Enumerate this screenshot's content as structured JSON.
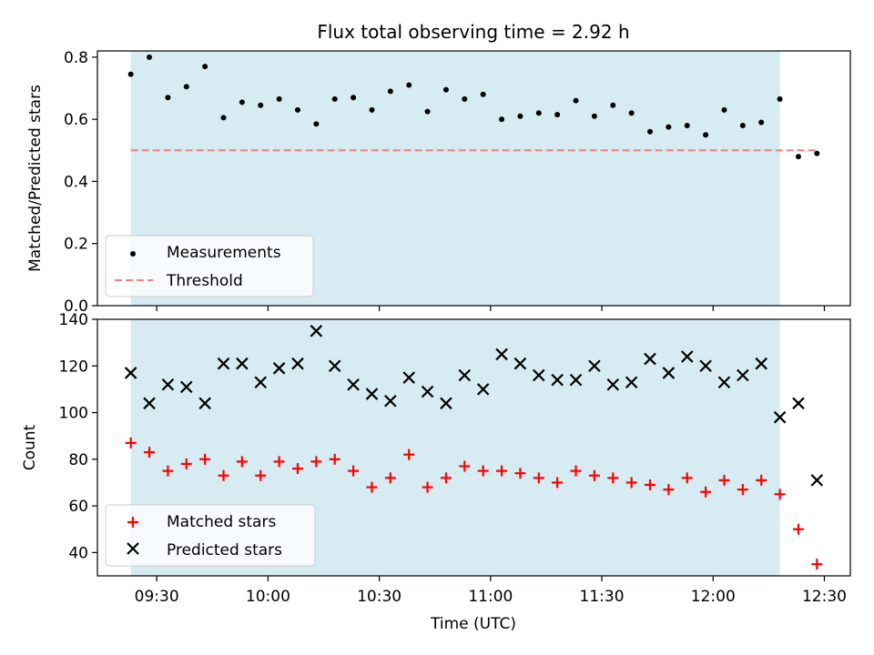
{
  "chart_data": [
    {
      "type": "scatter",
      "title": "Flux total observing time = 2.92 h",
      "xlabel": "",
      "ylabel": "Matched/Predicted stars",
      "ylim": [
        0,
        0.82
      ],
      "yticks": [
        "0.0",
        "0.2",
        "0.4",
        "0.6",
        "0.8"
      ],
      "ytick_values": [
        0,
        0.2,
        0.4,
        0.6,
        0.8
      ],
      "legend_position": "lower-left",
      "grid": false,
      "shaded_span": {
        "x_start": "09:23",
        "x_end": "12:18",
        "color": "#add8e6"
      },
      "threshold": {
        "name": "Threshold",
        "value": 0.5,
        "x_start": "09:23",
        "x_end": "12:28",
        "color": "#f08080"
      },
      "series": [
        {
          "name": "Measurements",
          "color": "#000000",
          "x": [
            "09:23",
            "09:28",
            "09:33",
            "09:38",
            "09:43",
            "09:48",
            "09:53",
            "09:58",
            "10:03",
            "10:08",
            "10:13",
            "10:18",
            "10:23",
            "10:28",
            "10:33",
            "10:38",
            "10:43",
            "10:48",
            "10:53",
            "10:58",
            "11:03",
            "11:08",
            "11:13",
            "11:18",
            "11:23",
            "11:28",
            "11:33",
            "11:38",
            "11:43",
            "11:48",
            "11:53",
            "11:58",
            "12:03",
            "12:08",
            "12:13",
            "12:18",
            "12:23",
            "12:28"
          ],
          "values": [
            0.745,
            0.8,
            0.67,
            0.705,
            0.77,
            0.605,
            0.655,
            0.645,
            0.665,
            0.63,
            0.585,
            0.665,
            0.67,
            0.63,
            0.69,
            0.71,
            0.625,
            0.695,
            0.665,
            0.68,
            0.6,
            0.61,
            0.62,
            0.615,
            0.66,
            0.61,
            0.645,
            0.62,
            0.56,
            0.575,
            0.58,
            0.55,
            0.63,
            0.58,
            0.59,
            0.665,
            0.48,
            0.49
          ]
        }
      ]
    },
    {
      "type": "scatter",
      "xlabel": "Time (UTC)",
      "ylabel": "Count",
      "ylim": [
        30,
        140
      ],
      "yticks": [
        "40",
        "60",
        "80",
        "100",
        "120",
        "140"
      ],
      "ytick_values": [
        40,
        60,
        80,
        100,
        120,
        140
      ],
      "xticks": [
        "09:30",
        "10:00",
        "10:30",
        "11:00",
        "11:30",
        "12:00",
        "12:30"
      ],
      "xtick_values": [
        "09:30",
        "10:00",
        "10:30",
        "11:00",
        "11:30",
        "12:00",
        "12:30"
      ],
      "xlim": [
        "09:14",
        "12:37"
      ],
      "legend_position": "lower-left",
      "grid": false,
      "shaded_span": {
        "x_start": "09:23",
        "x_end": "12:18",
        "color": "#add8e6"
      },
      "x": [
        "09:23",
        "09:28",
        "09:33",
        "09:38",
        "09:43",
        "09:48",
        "09:53",
        "09:58",
        "10:03",
        "10:08",
        "10:13",
        "10:18",
        "10:23",
        "10:28",
        "10:33",
        "10:38",
        "10:43",
        "10:48",
        "10:53",
        "10:58",
        "11:03",
        "11:08",
        "11:13",
        "11:18",
        "11:23",
        "11:28",
        "11:33",
        "11:38",
        "11:43",
        "11:48",
        "11:53",
        "11:58",
        "12:03",
        "12:08",
        "12:13",
        "12:18",
        "12:23",
        "12:28"
      ],
      "series": [
        {
          "name": "Matched stars",
          "marker": "+",
          "color": "#ff0000",
          "values": [
            87,
            83,
            75,
            78,
            80,
            73,
            79,
            73,
            79,
            76,
            79,
            80,
            75,
            68,
            72,
            82,
            68,
            72,
            77,
            75,
            75,
            74,
            72,
            70,
            75,
            73,
            72,
            70,
            69,
            67,
            72,
            66,
            71,
            67,
            71,
            65,
            50,
            35
          ]
        },
        {
          "name": "Predicted stars",
          "marker": "x",
          "color": "#000000",
          "values": [
            117,
            104,
            112,
            111,
            104,
            121,
            121,
            113,
            119,
            121,
            135,
            120,
            112,
            108,
            105,
            115,
            109,
            104,
            116,
            110,
            125,
            121,
            116,
            114,
            114,
            120,
            112,
            113,
            123,
            117,
            124,
            120,
            113,
            116,
            121,
            98,
            104,
            71
          ]
        }
      ]
    }
  ]
}
